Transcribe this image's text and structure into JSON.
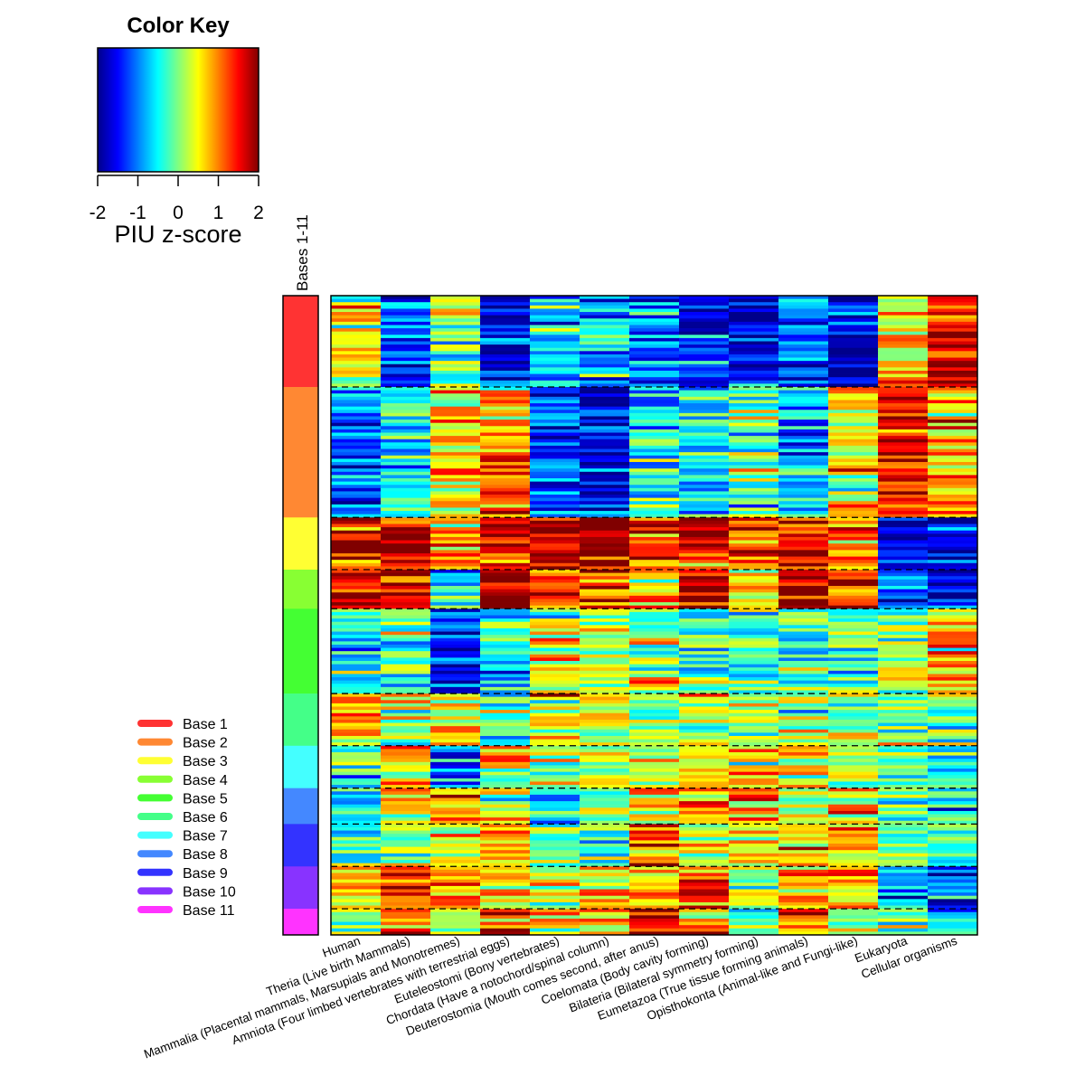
{
  "chart_data": {
    "type": "heatmap",
    "color_key": {
      "title": "Color Key",
      "label": "PIU z-score",
      "range": [
        -2,
        2
      ],
      "ticks": [
        "-2",
        "-1",
        "0",
        "1",
        "2"
      ],
      "palette": [
        "#00008B",
        "#0000FF",
        "#0080FF",
        "#00FFFF",
        "#80FF80",
        "#FFFF00",
        "#FF8000",
        "#FF0000",
        "#800000"
      ]
    },
    "row_side_label": "Bases 1-11",
    "columns": [
      "Human",
      "Theria (Live birth Mammals)",
      "Mammalia (Placental mammals, Marsupials and Monotremes)",
      "Amniota (Four limbed vertebrates with terrestrial eggs)",
      "Euteleostomi (Bony vertebrates)",
      "Chordata (Have a notochord/spinal column)",
      "Deuterostomia (Mouth comes second, after anus)",
      "Coelomata (Body cavity forming)",
      "Bilateria (Bilateral symmetry forming)",
      "Eumetazoa (True tissue forming animals)",
      "Opisthokonta (Animal-like and Fungi-like)",
      "Eukaryota",
      "Cellular organisms"
    ],
    "groups": [
      {
        "name": "Base 1",
        "color": "#FF3333",
        "rows": 28,
        "mean_z": [
          0.3,
          -1.2,
          0.1,
          -1.6,
          -0.5,
          -0.7,
          -1.0,
          -1.3,
          -1.7,
          -1.1,
          -1.6,
          0.6,
          1.6
        ]
      },
      {
        "name": "Base 2",
        "color": "#FF8833",
        "rows": 40,
        "mean_z": [
          -1.1,
          -0.4,
          0.6,
          0.9,
          -1.3,
          -1.5,
          -0.6,
          -0.5,
          -0.2,
          -0.9,
          0.3,
          1.4,
          0.7
        ]
      },
      {
        "name": "Base 3",
        "color": "#FFFF33",
        "rows": 16,
        "mean_z": [
          1.6,
          1.8,
          0.9,
          1.7,
          1.9,
          1.9,
          1.2,
          1.6,
          1.3,
          1.6,
          0.9,
          -1.6,
          -1.7
        ]
      },
      {
        "name": "Base 4",
        "color": "#88FF33",
        "rows": 12,
        "mean_z": [
          1.4,
          1.7,
          -0.3,
          1.7,
          1.5,
          1.3,
          0.9,
          1.9,
          0.5,
          1.8,
          1.4,
          -1.3,
          -1.7
        ]
      },
      {
        "name": "Base 5",
        "color": "#44FF33",
        "rows": 26,
        "mean_z": [
          -0.5,
          -0.2,
          -1.3,
          -0.6,
          0.3,
          0.1,
          0.1,
          -0.1,
          -0.2,
          -0.1,
          -0.4,
          0.1,
          0.7
        ]
      },
      {
        "name": "Base 6",
        "color": "#44FF88",
        "rows": 16,
        "mean_z": [
          0.6,
          0.1,
          0.4,
          -0.3,
          0.6,
          0.4,
          0.2,
          0.2,
          0.1,
          0.2,
          -0.1,
          0.1,
          -0.3
        ]
      },
      {
        "name": "Base 7",
        "color": "#44FFFF",
        "rows": 13,
        "mean_z": [
          -0.2,
          0.6,
          -1.2,
          0.4,
          0.2,
          0.1,
          0.4,
          0.6,
          0.7,
          0.4,
          0.3,
          -0.1,
          -0.4
        ]
      },
      {
        "name": "Base 8",
        "color": "#4488FF",
        "rows": 11,
        "mean_z": [
          -0.4,
          0.5,
          0.6,
          0.2,
          -0.5,
          -0.3,
          0.5,
          0.6,
          0.9,
          0.2,
          0.4,
          0.1,
          -0.2
        ]
      },
      {
        "name": "Base 9",
        "color": "#3333FF",
        "rows": 13,
        "mean_z": [
          -0.3,
          0.2,
          0.4,
          1.2,
          -0.3,
          -0.1,
          1.1,
          0.5,
          0.5,
          0.6,
          0.7,
          -0.1,
          -0.3
        ]
      },
      {
        "name": "Base 10",
        "color": "#8833FF",
        "rows": 13,
        "mean_z": [
          0.5,
          1.0,
          0.9,
          0.8,
          0.3,
          0.6,
          0.8,
          1.1,
          0.3,
          0.9,
          0.7,
          -0.8,
          -1.0
        ]
      },
      {
        "name": "Base 11",
        "color": "#FF33FF",
        "rows": 8,
        "mean_z": [
          0.2,
          1.3,
          0.1,
          1.4,
          0.4,
          0.5,
          1.5,
          1.1,
          0.0,
          0.8,
          0.3,
          -0.3,
          -0.6
        ]
      }
    ]
  }
}
